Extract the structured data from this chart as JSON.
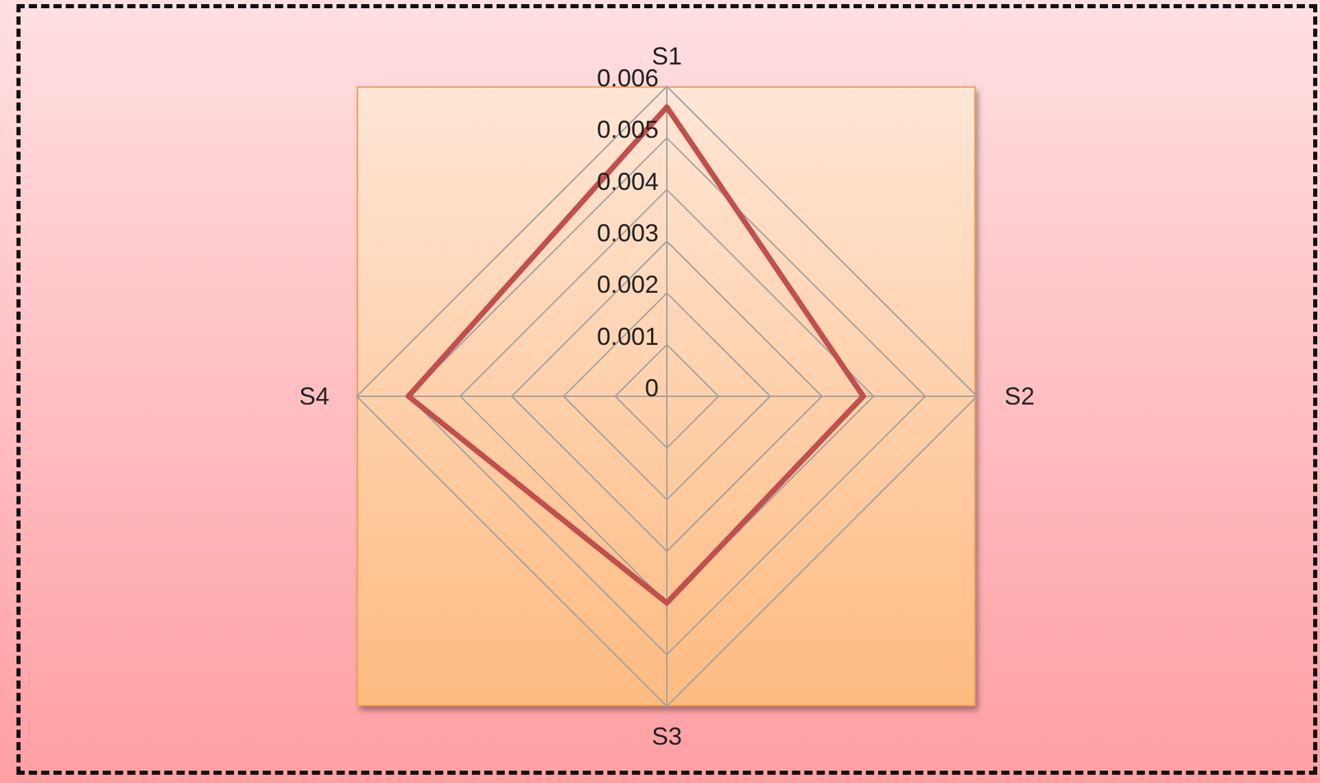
{
  "chart_data": {
    "type": "radar",
    "categories": [
      "S1",
      "S2",
      "S3",
      "S4"
    ],
    "series": [
      {
        "color": "#c0504d",
        "values": [
          0.0056,
          0.0038,
          0.004,
          0.005
        ]
      }
    ],
    "ylim": [
      0,
      0.006
    ],
    "yticks": [
      0,
      0.001,
      0.002,
      0.003,
      0.004,
      0.005,
      0.006
    ],
    "grid": true,
    "marker": "none"
  }
}
